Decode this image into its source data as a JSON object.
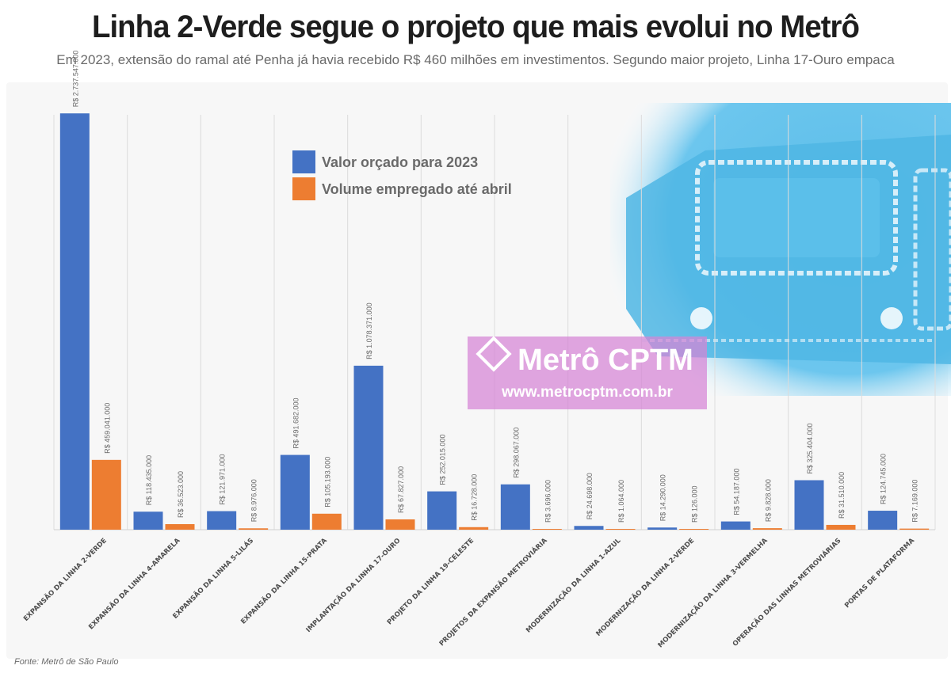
{
  "title": "Linha 2-Verde segue o projeto que mais evolui no Metrô",
  "subtitle": "Em 2023, extensão do ramal até Penha já havia recebido R$ 460 milhões em investimentos. Segundo maior projeto, Linha 17-Ouro empaca",
  "source": "Fonte: Metrô de São Paulo",
  "watermark": {
    "logo_text": "Metrô CPTM",
    "url": "www.metrocptm.com.br",
    "color": "#d684d6"
  },
  "chart_data": {
    "type": "bar",
    "categories": [
      "EXPANSÃO DA LINHA 2-VERDE",
      "EXPANSÃO DA LINHA 4-AMARELA",
      "EXPANSÃO DA LINHA 5-LILÁS",
      "EXPANSÃO DA LINHA 15-PRATA",
      "IMPLANTAÇÃO DA LINHA 17-OURO",
      "PROJETO DA LINHA 19-CELESTE",
      "PROJETOS DA EXPANSÃO METROVIÁRIA",
      "MODERNIZAÇÃO DA LINHA 1-AZUL",
      "MODERNIZAÇÃO DA LINHA 2-VERDE",
      "MODERNIZAÇÃO DA LINHA 3-VERMELHA",
      "OPERAÇÃO DAS LINHAS METROVIÁRIAS",
      "PORTAS DE PLATAFORMA"
    ],
    "series": [
      {
        "name": "Valor orçado para 2023",
        "color": "#4472c4",
        "values": [
          2737547000,
          118435000,
          121971000,
          491682000,
          1078371000,
          252015000,
          298067000,
          24698000,
          14290000,
          54187000,
          325404000,
          124745000
        ],
        "labels": [
          "R$ 2.737.547.000",
          "R$ 118.435.000",
          "R$ 121.971.000",
          "R$ 491.682.000",
          "R$ 1.078.371.000",
          "R$ 252.015.000",
          "R$ 298.067.000",
          "R$ 24.698.000",
          "R$ 14.290.000",
          "R$ 54.187.000",
          "R$ 325.404.000",
          "R$ 124.745.000"
        ]
      },
      {
        "name": "Volume empregado até abril",
        "color": "#ed7d31",
        "values": [
          459041000,
          36523000,
          8976000,
          105193000,
          67827000,
          16728000,
          3696000,
          1064000,
          126000,
          9828000,
          31510000,
          7169000
        ],
        "labels": [
          "R$ 459.041.000",
          "R$ 36.523.000",
          "R$ 8.976.000",
          "R$ 105.193.000",
          "R$ 67.827.000",
          "R$ 16.728.000",
          "R$ 3.696.000",
          "R$ 1.064.000",
          "R$ 126.000",
          "R$ 9.828.000",
          "R$ 31.510.000",
          "R$ 7.169.000"
        ]
      }
    ],
    "ylim": [
      0,
      2900000000
    ],
    "grid": "vertical category separators",
    "legend": "top-center"
  }
}
